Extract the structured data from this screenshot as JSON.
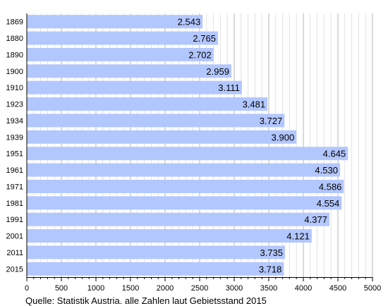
{
  "chart_data": {
    "type": "bar",
    "orientation": "horizontal",
    "categories": [
      "1869",
      "1880",
      "1890",
      "1900",
      "1910",
      "1923",
      "1934",
      "1939",
      "1951",
      "1961",
      "1971",
      "1981",
      "1991",
      "2001",
      "2011",
      "2015"
    ],
    "values": [
      2543,
      2765,
      2702,
      2959,
      3111,
      3481,
      3727,
      3900,
      4645,
      4530,
      4586,
      4554,
      4377,
      4121,
      3735,
      3718
    ],
    "value_labels": [
      "2.543",
      "2.765",
      "2.702",
      "2.959",
      "3.111",
      "3.481",
      "3.727",
      "3.900",
      "4.645",
      "4.530",
      "4.586",
      "4.554",
      "4.377",
      "4.121",
      "3.735",
      "3.718"
    ],
    "xlim": [
      0,
      5000
    ],
    "x_ticks": [
      0,
      500,
      1000,
      1500,
      2000,
      2500,
      3000,
      3500,
      4000,
      4500,
      5000
    ],
    "x_tick_labels": [
      "0",
      "500",
      "1000",
      "1500",
      "2000",
      "2500",
      "3000",
      "3500",
      "4000",
      "4500",
      "5000"
    ],
    "grid": "vertical",
    "bar_color": "#b3c7ff",
    "source": "Quelle: Statistik Austria. alle Zahlen laut Gebietsstand 2015"
  }
}
